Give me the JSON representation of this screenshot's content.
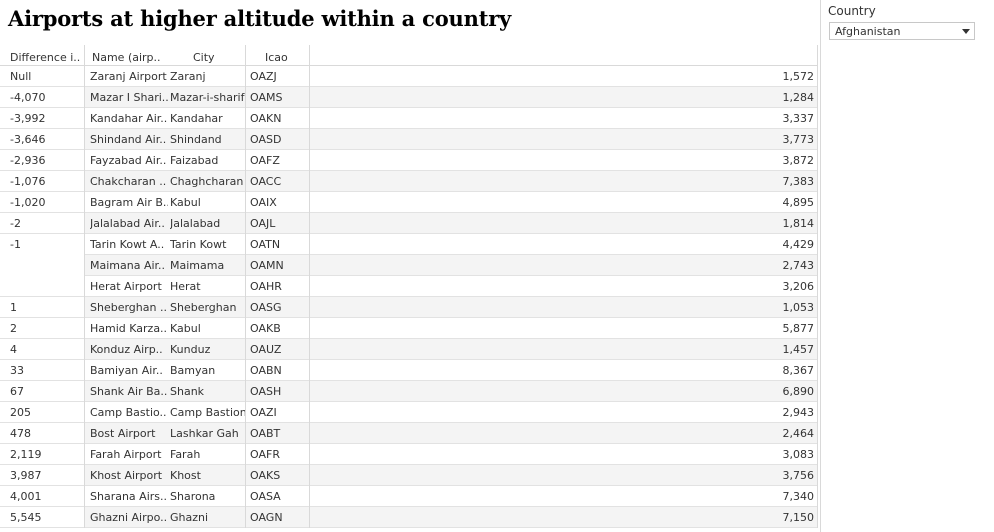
{
  "title": "Airports at higher altitude within a country",
  "filter": {
    "label": "Country",
    "value": "Afghanistan"
  },
  "table": {
    "headers": {
      "diff": "Difference i..",
      "name": "Name (airp..",
      "city": "City",
      "icao": "Icao"
    },
    "rows": [
      {
        "diff": "Null",
        "name": "Zaranj Airport",
        "city": "Zaranj",
        "icao": "OAZJ",
        "value": "1,572"
      },
      {
        "diff": "-4,070",
        "name": "Mazar I Shari..",
        "city": "Mazar-i-sharif",
        "icao": "OAMS",
        "value": "1,284"
      },
      {
        "diff": "-3,992",
        "name": "Kandahar Air..",
        "city": "Kandahar",
        "icao": "OAKN",
        "value": "3,337"
      },
      {
        "diff": "-3,646",
        "name": "Shindand Air..",
        "city": "Shindand",
        "icao": "OASD",
        "value": "3,773"
      },
      {
        "diff": "-2,936",
        "name": "Fayzabad Air..",
        "city": "Faizabad",
        "icao": "OAFZ",
        "value": "3,872"
      },
      {
        "diff": "-1,076",
        "name": "Chakcharan ..",
        "city": "Chaghcharan",
        "icao": "OACC",
        "value": "7,383"
      },
      {
        "diff": "-1,020",
        "name": "Bagram Air B..",
        "city": "Kabul",
        "icao": "OAIX",
        "value": "4,895"
      },
      {
        "diff": "-2",
        "name": "Jalalabad Air..",
        "city": "Jalalabad",
        "icao": "OAJL",
        "value": "1,814"
      },
      {
        "diff": "-1",
        "name": "Tarin Kowt A..",
        "city": "Tarin Kowt",
        "icao": "OATN",
        "value": "4,429"
      },
      {
        "diff": "",
        "name": "Maimana Air..",
        "city": "Maimama",
        "icao": "OAMN",
        "value": "2,743"
      },
      {
        "diff": "",
        "name": "Herat Airport",
        "city": "Herat",
        "icao": "OAHR",
        "value": "3,206"
      },
      {
        "diff": "1",
        "name": "Sheberghan ..",
        "city": "Sheberghan",
        "icao": "OASG",
        "value": "1,053"
      },
      {
        "diff": "2",
        "name": "Hamid Karza..",
        "city": "Kabul",
        "icao": "OAKB",
        "value": "5,877"
      },
      {
        "diff": "4",
        "name": "Konduz Airp..",
        "city": "Kunduz",
        "icao": "OAUZ",
        "value": "1,457"
      },
      {
        "diff": "33",
        "name": "Bamiyan Air..",
        "city": "Bamyan",
        "icao": "OABN",
        "value": "8,367"
      },
      {
        "diff": "67",
        "name": "Shank Air Ba..",
        "city": "Shank",
        "icao": "OASH",
        "value": "6,890"
      },
      {
        "diff": "205",
        "name": "Camp Bastio..",
        "city": "Camp Bastion",
        "icao": "OAZI",
        "value": "2,943"
      },
      {
        "diff": "478",
        "name": "Bost Airport",
        "city": "Lashkar Gah",
        "icao": "OABT",
        "value": "2,464"
      },
      {
        "diff": "2,119",
        "name": "Farah Airport",
        "city": "Farah",
        "icao": "OAFR",
        "value": "3,083"
      },
      {
        "diff": "3,987",
        "name": "Khost Airport",
        "city": "Khost",
        "icao": "OAKS",
        "value": "3,756"
      },
      {
        "diff": "4,001",
        "name": "Sharana Airs..",
        "city": "Sharona",
        "icao": "OASA",
        "value": "7,340"
      },
      {
        "diff": "5,545",
        "name": "Ghazni Airpo..",
        "city": "Ghazni",
        "icao": "OAGN",
        "value": "7,150"
      }
    ]
  }
}
